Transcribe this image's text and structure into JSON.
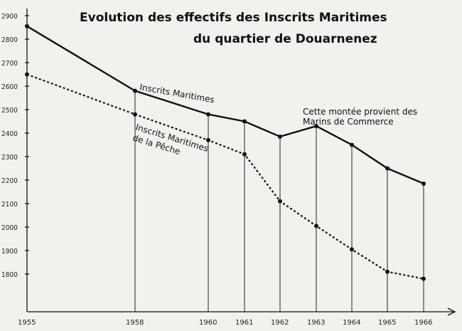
{
  "chart_data": {
    "type": "line",
    "title_line1": "Evolution des effectifs des Inscrits Maritimes",
    "title_line2": "du quartier de Douarnenez",
    "x": [
      1955,
      1958,
      1960,
      1961,
      1962,
      1963,
      1964,
      1965,
      1966
    ],
    "x_tick_labels": [
      "1955",
      "1958",
      "1960",
      "1961",
      "1962",
      "1963",
      "1964",
      "1965",
      "1966"
    ],
    "y_ticks": [
      1800,
      1900,
      2000,
      2100,
      2200,
      2300,
      2400,
      2500,
      2600,
      2700,
      2800,
      2900
    ],
    "ylim": [
      1700,
      2900
    ],
    "series": [
      {
        "name": "Inscrits Maritimes",
        "style": "solid",
        "values": [
          2855,
          2580,
          2480,
          2450,
          2385,
          2430,
          2350,
          2250,
          2185
        ]
      },
      {
        "name": "Inscrits Maritimes de la Pêche",
        "name_line1": "Inscrits Maritimes",
        "name_line2": "de la Pêche",
        "style": "dotted",
        "values": [
          2650,
          2480,
          2370,
          2310,
          2110,
          2005,
          1905,
          1810,
          1780
        ]
      }
    ],
    "annotation_line1": "Cette montée provient des",
    "annotation_line2": "Marins de Commerce"
  }
}
